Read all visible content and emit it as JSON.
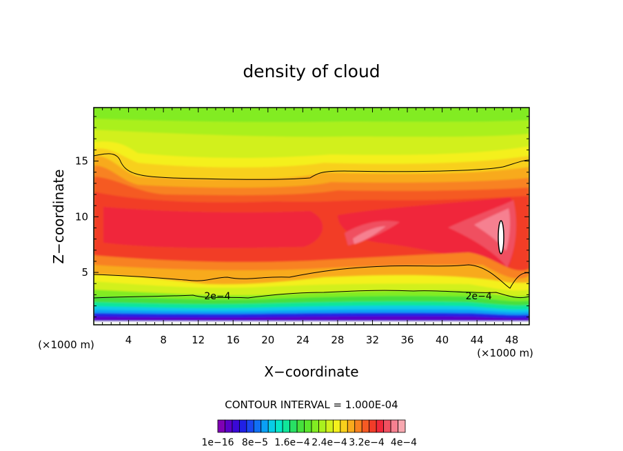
{
  "chart_data": {
    "type": "heatmap",
    "title": "density of cloud",
    "xlabel": "X−coordinate",
    "ylabel": "Z−coordinate",
    "x_unit_left": "(×1000 m)",
    "x_unit_right": "(×1000 m)",
    "xlim": [
      0,
      50
    ],
    "ylim": [
      0.3,
      19.8
    ],
    "x_ticks": [
      4,
      8,
      12,
      16,
      20,
      24,
      28,
      32,
      36,
      40,
      44,
      48
    ],
    "y_ticks": [
      5,
      10,
      15
    ],
    "contour_interval_text": "CONTOUR INTERVAL = 1.000E-04",
    "contour_labels": [
      {
        "text": "2e−4",
        "x": 14.2,
        "y": 2.6
      },
      {
        "text": "2e−4",
        "x": 44.2,
        "y": 2.6
      }
    ],
    "colorbar": {
      "colors": [
        "#7f00b4",
        "#5a00c8",
        "#3a08d8",
        "#2020e6",
        "#1a46f0",
        "#1070f5",
        "#0aa0f5",
        "#08cce6",
        "#06e6c8",
        "#10e69a",
        "#28e064",
        "#46e03c",
        "#5ae62c",
        "#82ec22",
        "#aaf01e",
        "#d2f01c",
        "#f4f01c",
        "#f8d01c",
        "#f8aa1c",
        "#f88220",
        "#f55a24",
        "#f23c28",
        "#f0283a",
        "#f05060",
        "#f68090",
        "#f8a8b0"
      ],
      "tick_labels": [
        "1e−16",
        "8e−5",
        "1.6e−4",
        "2.4e−4",
        "3.2e−4",
        "4e−4"
      ]
    }
  }
}
